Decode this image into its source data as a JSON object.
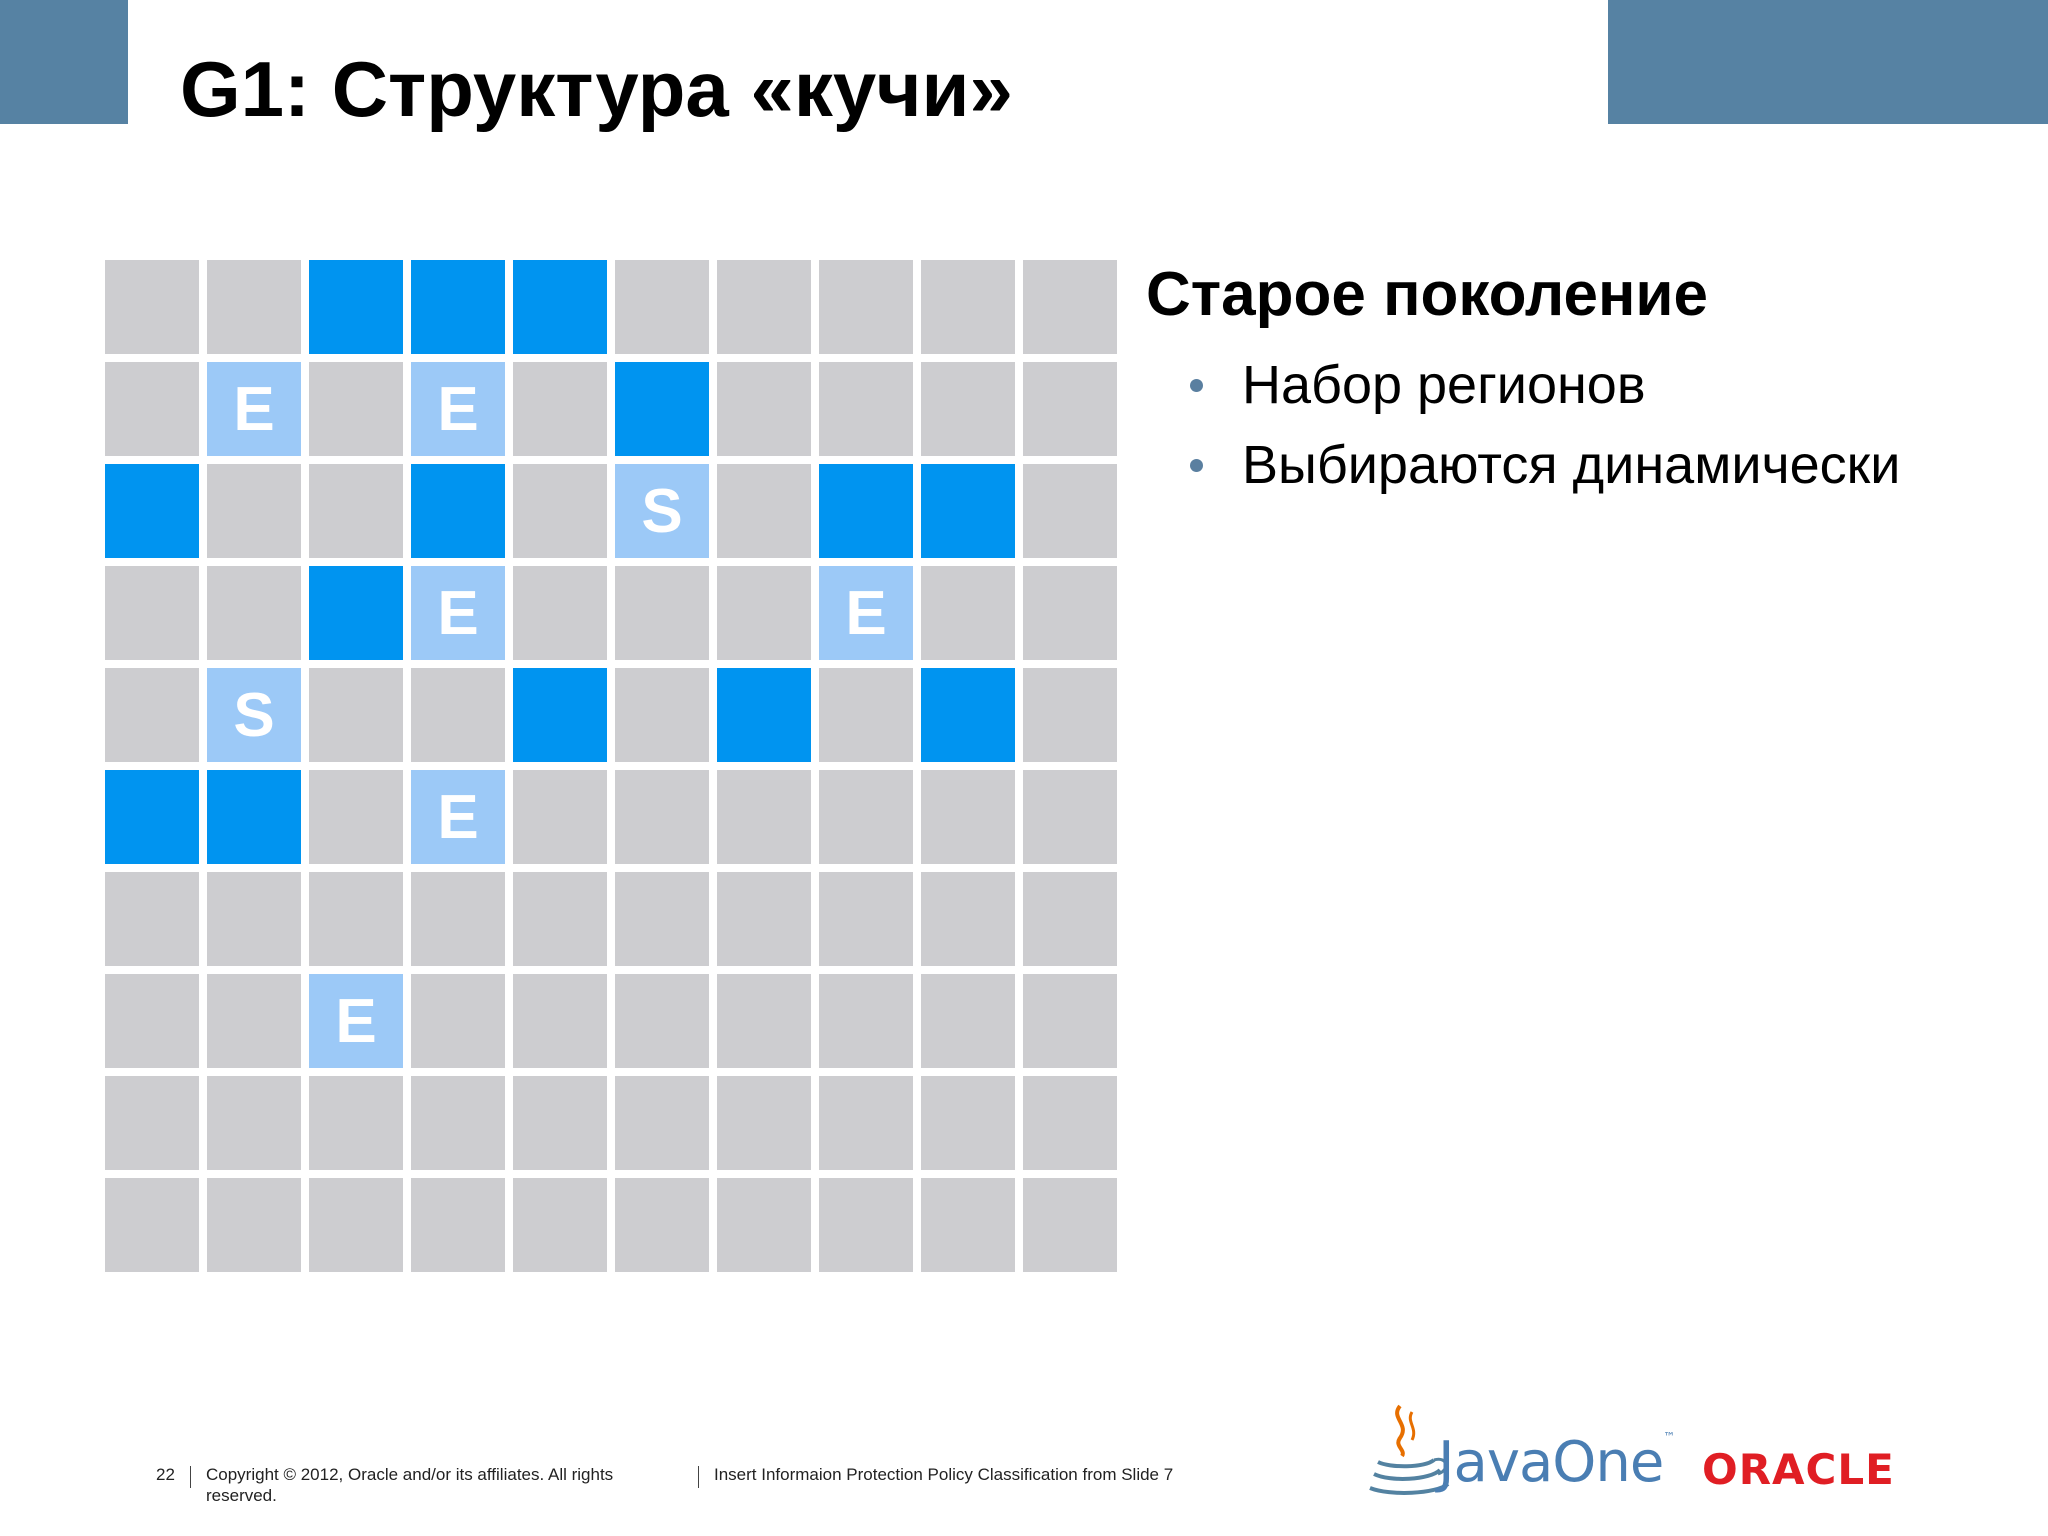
{
  "slide": {
    "title": "G1: Структура «кучи»",
    "heading": "Старое поколение",
    "bullets": [
      "Набор регионов",
      "Выбираются динамически"
    ]
  },
  "heap_grid": {
    "rows": 10,
    "cols": 10,
    "cells": [
      [
        "free",
        "free",
        "old",
        "old",
        "old",
        "free",
        "free",
        "free",
        "free",
        "free"
      ],
      [
        "free",
        "E",
        "free",
        "E",
        "free",
        "old",
        "free",
        "free",
        "free",
        "free"
      ],
      [
        "old",
        "free",
        "free",
        "old",
        "free",
        "S",
        "free",
        "old",
        "old",
        "free"
      ],
      [
        "free",
        "free",
        "old",
        "E",
        "free",
        "free",
        "free",
        "E",
        "free",
        "free"
      ],
      [
        "free",
        "S",
        "free",
        "free",
        "old",
        "free",
        "old",
        "free",
        "old",
        "free"
      ],
      [
        "old",
        "old",
        "free",
        "E",
        "free",
        "free",
        "free",
        "free",
        "free",
        "free"
      ],
      [
        "free",
        "free",
        "free",
        "free",
        "free",
        "free",
        "free",
        "free",
        "free",
        "free"
      ],
      [
        "free",
        "free",
        "E",
        "free",
        "free",
        "free",
        "free",
        "free",
        "free",
        "free"
      ],
      [
        "free",
        "free",
        "free",
        "free",
        "free",
        "free",
        "free",
        "free",
        "free",
        "free"
      ],
      [
        "free",
        "free",
        "free",
        "free",
        "free",
        "free",
        "free",
        "free",
        "free",
        "free"
      ]
    ],
    "colors": {
      "free": "#cdcdd0",
      "old": "#0094f0",
      "young": "#9cc9f7"
    }
  },
  "footer": {
    "page_number": "22",
    "copyright": "Copyright © 2012, Oracle and/or its affiliates. All rights reserved.",
    "classification": "Insert Informaion Protection Policy Classification from Slide 7"
  },
  "logos": {
    "javaone": "JavaOne",
    "javaone_tm": "™",
    "oracle": "ORACLE",
    "java_icon": "java-cup-icon"
  },
  "colors": {
    "header_band": "#5682a3",
    "bullet": "#5a7fa0",
    "javaone_blue": "#4a7eb3",
    "oracle_red": "#e01e24"
  }
}
